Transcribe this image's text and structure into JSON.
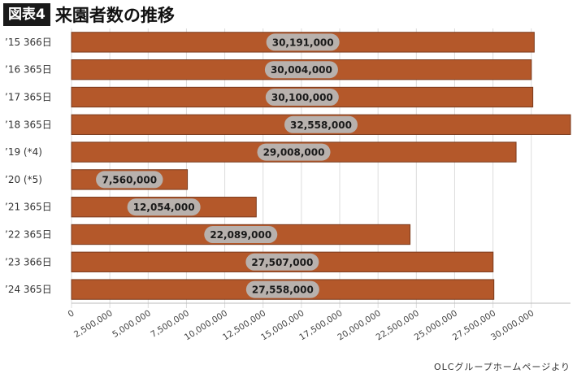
{
  "header": {
    "badge": "図表4",
    "title": "来園者数の推移"
  },
  "source": "OLCグループホームページより",
  "colors": {
    "bar": "#b4582a",
    "bar_border": "#7a3a1c",
    "label_pill": "#b8b8b8",
    "gridline": "#dcdcdc"
  },
  "chart_data": {
    "type": "bar",
    "orientation": "horizontal",
    "title": "来園者数の推移",
    "categories": [
      "’15 366日",
      "’16 365日",
      "’17 365日",
      "’18 365日",
      "’19 (*4)",
      "’20 (*5)",
      "’21 365日",
      "’22 365日",
      "’23 366日",
      "’24 365日"
    ],
    "values": [
      30191000,
      30004000,
      30100000,
      32558000,
      29008000,
      7560000,
      12054000,
      22089000,
      27507000,
      27558000
    ],
    "data_labels": [
      "30,191,000",
      "30,004,000",
      "30,100,000",
      "32,558,000",
      "29,008,000",
      "7,560,000",
      "12,054,000",
      "22,089,000",
      "27,507,000",
      "27,558,000"
    ],
    "xlim": [
      0,
      32558000
    ],
    "ticks": [
      0,
      2500000,
      5000000,
      7500000,
      10000000,
      12500000,
      15000000,
      17500000,
      20000000,
      22500000,
      25000000,
      27500000,
      30000000
    ],
    "tick_labels": [
      "0",
      "2,500,000",
      "5,000,000",
      "7,500,000",
      "10,000,000",
      "12,500,000",
      "15,000,000",
      "17,500,000",
      "20,000,000",
      "22,500,000",
      "25,000,000",
      "27,500,000",
      "30,000,000"
    ],
    "grid": true,
    "legend": "none"
  }
}
